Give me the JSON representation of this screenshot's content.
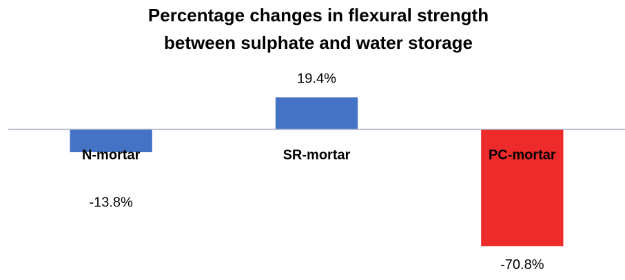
{
  "chart_data": {
    "type": "bar",
    "title": [
      "Percentage changes in flexural strength",
      "between sulphate and water  storage"
    ],
    "categories": [
      "N-mortar",
      "SR-mortar",
      "PC-mortar"
    ],
    "values": [
      -13.8,
      19.4,
      -70.8
    ],
    "value_labels": [
      "-13.8%",
      "19.4%",
      "-70.8%"
    ],
    "colors": [
      "#4472c4",
      "#4472c4",
      "#ee2b2b"
    ],
    "ylim": [
      -75,
      25
    ]
  }
}
